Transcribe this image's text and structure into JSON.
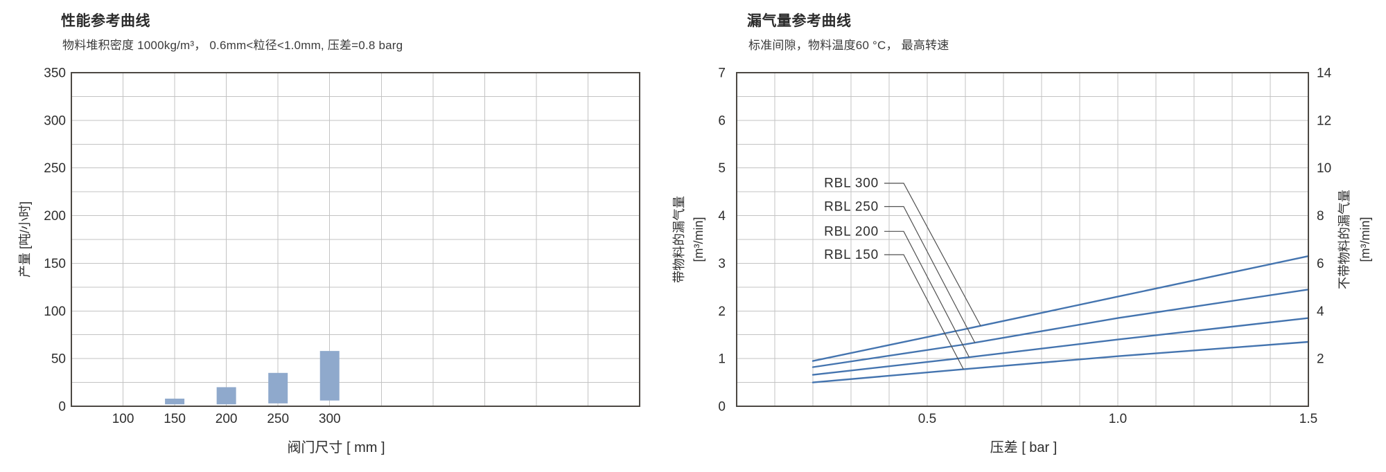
{
  "page": {
    "background": "#ffffff"
  },
  "colors": {
    "bar_fill": "#8fa9cc",
    "curve": "#4474af",
    "grid": "#c3c3c3",
    "axis_border": "#4c4843",
    "tick_text": "#2d2d2d",
    "subtitle_text": "#3a3a3a",
    "leader": "#4f4f4f"
  },
  "chart_data": [
    {
      "type": "bar",
      "title": "性能参考曲线",
      "subtitle": "物料堆积密度 1000kg/m³， 0.6mm<粒径<1.0mm, 压差=0.8 barg",
      "xlabel": "阀门尺寸 [ mm ]",
      "ylabel": "产量 [吨/小时]",
      "ylim": [
        0,
        350
      ],
      "ytick_step": 50,
      "yminor_step": 25,
      "grid_columns": 11,
      "grid": "on",
      "categories": [
        100,
        150,
        200,
        250,
        300
      ],
      "bars": [
        {
          "category": 150,
          "low": 2,
          "high": 8
        },
        {
          "category": 200,
          "low": 2,
          "high": 20
        },
        {
          "category": 250,
          "low": 3,
          "high": 35
        },
        {
          "category": 300,
          "low": 6,
          "high": 58
        }
      ]
    },
    {
      "type": "line",
      "title": "漏气量参考曲线",
      "subtitle": "标准间隙，物料温度60 °C， 最高转速",
      "xlabel": "压差 [ bar ]",
      "ylabel_left": "带物料的漏气量",
      "ylabel_left_unit": "[m³/min]",
      "ylabel_right": "不带物料的漏气量",
      "ylabel_right_unit": "[m³/min]",
      "xlim": [
        0,
        1.5
      ],
      "xticks": [
        0.5,
        1.0,
        1.5
      ],
      "xminor_step": 0.1,
      "ylim_left": [
        0,
        7
      ],
      "yticks_left": [
        0,
        1,
        2,
        3,
        4,
        5,
        6,
        7
      ],
      "yminor_step": 0.5,
      "ylim_right": [
        0,
        14
      ],
      "yticks_right": [
        2,
        4,
        6,
        8,
        10,
        12,
        14
      ],
      "grid": "on",
      "legend_position": "inside-left",
      "series": [
        {
          "name": "RBL 300",
          "points": [
            [
              0.2,
              0.95
            ],
            [
              0.6,
              1.62
            ],
            [
              1.0,
              2.3
            ],
            [
              1.5,
              3.15
            ]
          ]
        },
        {
          "name": "RBL 250",
          "points": [
            [
              0.2,
              0.82
            ],
            [
              0.6,
              1.3
            ],
            [
              1.0,
              1.85
            ],
            [
              1.5,
              2.45
            ]
          ]
        },
        {
          "name": "RBL 200",
          "points": [
            [
              0.2,
              0.66
            ],
            [
              0.6,
              1.02
            ],
            [
              1.0,
              1.4
            ],
            [
              1.5,
              1.85
            ]
          ]
        },
        {
          "name": "RBL 150",
          "points": [
            [
              0.2,
              0.5
            ],
            [
              0.6,
              0.78
            ],
            [
              1.0,
              1.05
            ],
            [
              1.5,
              1.35
            ]
          ]
        }
      ],
      "series_label_values": [
        4.68,
        4.19,
        3.67,
        3.18
      ],
      "leader_target_x": [
        0.64,
        0.625,
        0.61,
        0.595
      ]
    }
  ]
}
